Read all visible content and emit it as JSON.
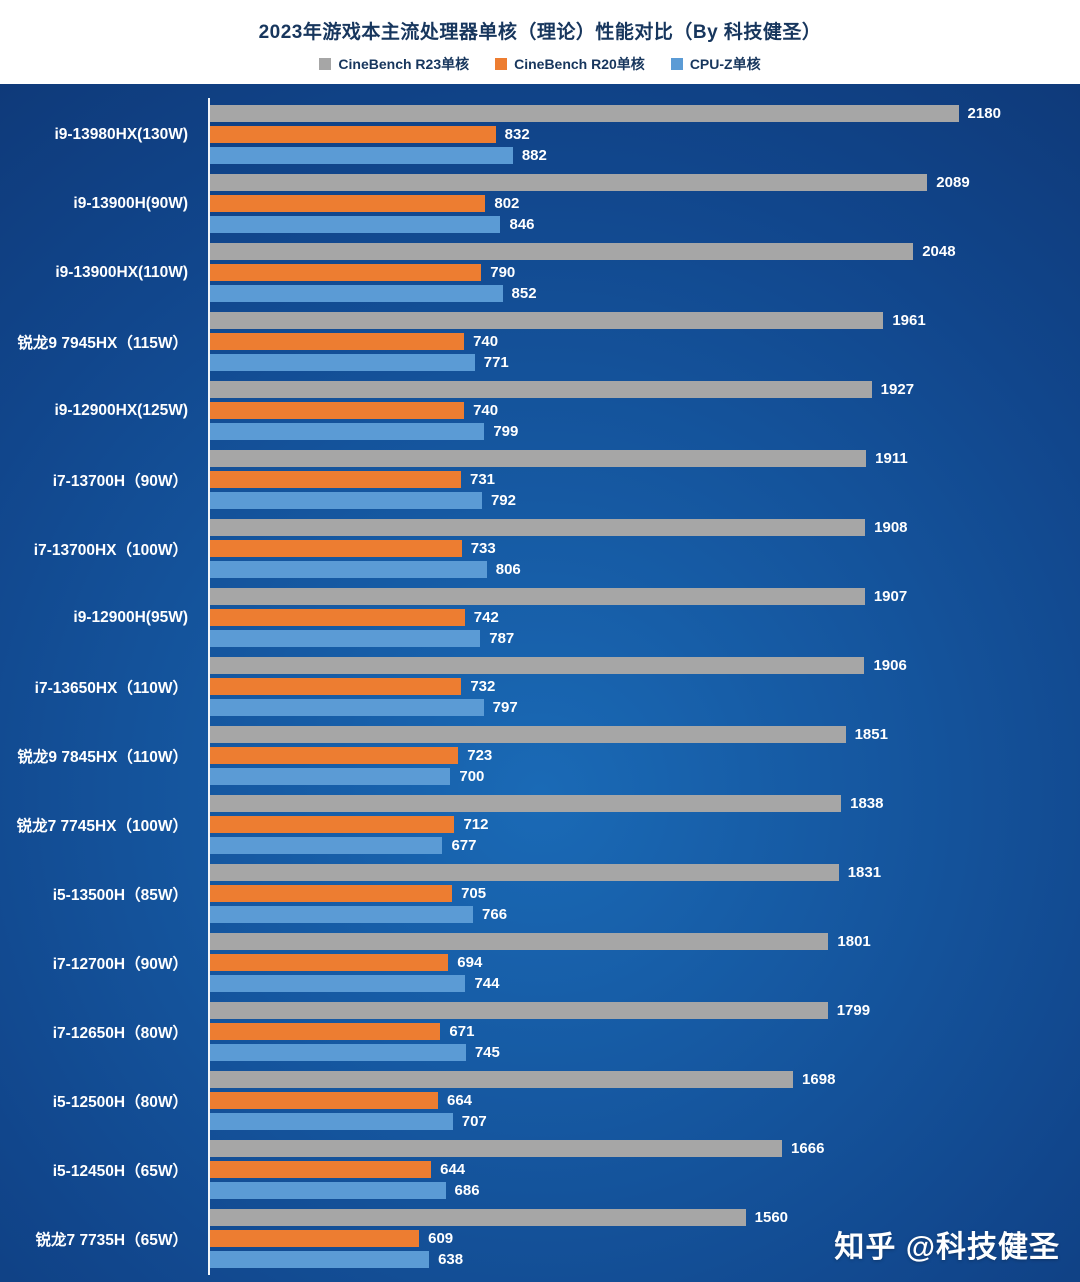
{
  "title": "2023年游戏本主流处理器单核（理论）性能对比（By 科技健圣）",
  "watermark": "知乎 @科技健圣",
  "colors": {
    "background_dark": "#0a2256",
    "background_light": "#1a6ab6",
    "header_bg": "#ffffff",
    "title_text": "#17365d",
    "axis_line": "#ffffff",
    "label_text": "#ffffff"
  },
  "legend": [
    {
      "key": "cinebench-r23",
      "label": "CineBench R23单核",
      "color": "#a6a6a6"
    },
    {
      "key": "cinebench-r20",
      "label": "CineBench R20单核",
      "color": "#ed7d31"
    },
    {
      "key": "cpu-z",
      "label": "CPU-Z单核",
      "color": "#5b9bd5"
    }
  ],
  "chart_data": {
    "type": "bar",
    "orientation": "horizontal",
    "title": "2023年游戏本主流处理器单核（理论）性能对比（By 科技健圣）",
    "xlabel": "",
    "ylabel": "",
    "xlim": [
      0,
      2490
    ],
    "grid": false,
    "legend_position": "top",
    "categories": [
      "i9-13980HX(130W)",
      "i9-13900H(90W)",
      "i9-13900HX(110W)",
      "锐龙9 7945HX（115W）",
      "i9-12900HX(125W)",
      "i7-13700H（90W）",
      "i7-13700HX（100W）",
      "i9-12900H(95W)",
      "i7-13650HX（110W）",
      "锐龙9 7845HX（110W）",
      "锐龙7 7745HX（100W）",
      "i5-13500H（85W）",
      "i7-12700H（90W）",
      "i7-12650H（80W）",
      "i5-12500H（80W）",
      "i5-12450H（65W）",
      "锐龙7 7735H（65W）"
    ],
    "series": [
      {
        "name": "CineBench R23单核",
        "key": "cinebench-r23",
        "color": "#a6a6a6",
        "values": [
          2180,
          2089,
          2048,
          1961,
          1927,
          1911,
          1908,
          1907,
          1906,
          1851,
          1838,
          1831,
          1801,
          1799,
          1698,
          1666,
          1560
        ]
      },
      {
        "name": "CineBench R20单核",
        "key": "cinebench-r20",
        "color": "#ed7d31",
        "values": [
          832,
          802,
          790,
          740,
          740,
          731,
          733,
          742,
          732,
          723,
          712,
          705,
          694,
          671,
          664,
          644,
          609
        ]
      },
      {
        "name": "CPU-Z单核",
        "key": "cpu-z",
        "color": "#5b9bd5",
        "values": [
          882,
          846,
          852,
          771,
          799,
          792,
          806,
          787,
          797,
          700,
          677,
          766,
          744,
          745,
          707,
          686,
          638
        ]
      }
    ]
  }
}
